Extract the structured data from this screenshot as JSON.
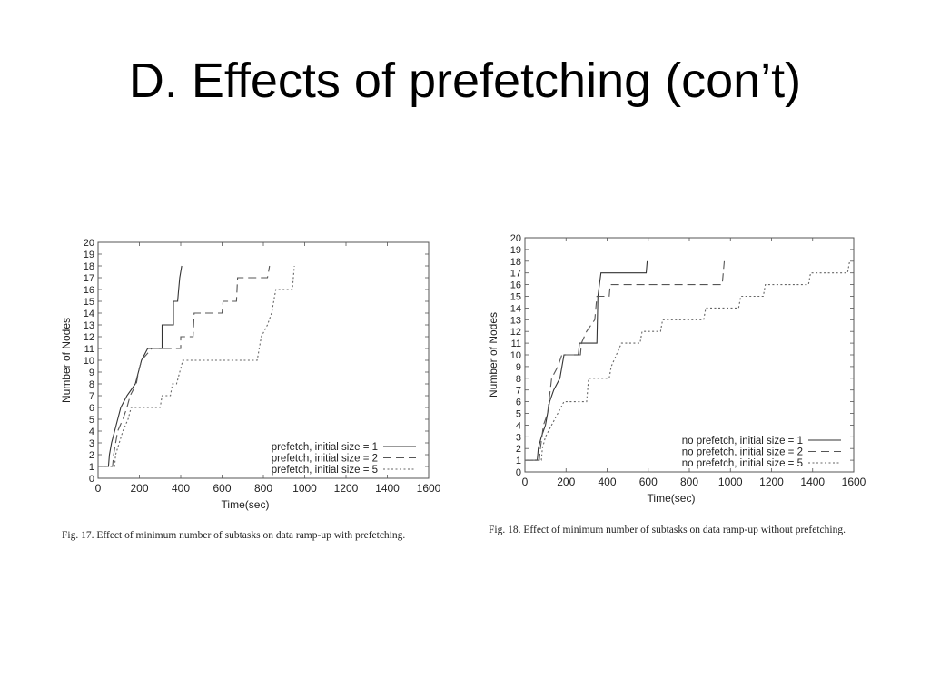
{
  "slide": {
    "title": "D. Effects of prefetching (con’t)"
  },
  "chart_data": [
    {
      "type": "line",
      "step": true,
      "xlabel": "Time(sec)",
      "ylabel": "Number of Nodes",
      "xlim": [
        0,
        1600
      ],
      "ylim": [
        0,
        20
      ],
      "xticks": [
        0,
        200,
        400,
        600,
        800,
        1000,
        1200,
        1400,
        1600
      ],
      "yticks": [
        0,
        1,
        2,
        3,
        4,
        5,
        6,
        7,
        8,
        9,
        10,
        11,
        12,
        13,
        14,
        15,
        16,
        17,
        18,
        19,
        20
      ],
      "legend": "bottom-right",
      "grid": false,
      "caption": "Fig. 17.   Effect of minimum number of subtasks on data ramp-up with prefetching.",
      "series": [
        {
          "name": "prefetch, initial size = 1",
          "style": "solid",
          "points": [
            [
              0,
              1
            ],
            [
              50,
              1
            ],
            [
              55,
              2
            ],
            [
              65,
              3
            ],
            [
              80,
              4
            ],
            [
              95,
              5
            ],
            [
              110,
              6
            ],
            [
              140,
              7
            ],
            [
              180,
              8
            ],
            [
              195,
              9
            ],
            [
              210,
              10
            ],
            [
              240,
              11
            ],
            [
              310,
              11
            ],
            [
              310,
              13
            ],
            [
              365,
              13
            ],
            [
              365,
              15
            ],
            [
              385,
              15
            ],
            [
              390,
              16
            ],
            [
              395,
              17
            ],
            [
              405,
              18
            ]
          ]
        },
        {
          "name": "prefetch, initial size = 2",
          "style": "dashed",
          "points": [
            [
              0,
              1
            ],
            [
              70,
              1
            ],
            [
              75,
              2
            ],
            [
              95,
              4
            ],
            [
              120,
              5
            ],
            [
              140,
              6
            ],
            [
              155,
              7
            ],
            [
              185,
              8
            ],
            [
              195,
              9
            ],
            [
              210,
              10
            ],
            [
              260,
              11
            ],
            [
              400,
              11
            ],
            [
              400,
              12
            ],
            [
              460,
              12
            ],
            [
              465,
              14
            ],
            [
              600,
              14
            ],
            [
              605,
              15
            ],
            [
              670,
              15
            ],
            [
              675,
              17
            ],
            [
              820,
              17
            ],
            [
              830,
              18
            ]
          ]
        },
        {
          "name": "prefetch, initial size = 5",
          "style": "dotted",
          "points": [
            [
              0,
              1
            ],
            [
              80,
              1
            ],
            [
              85,
              2
            ],
            [
              120,
              4
            ],
            [
              145,
              5
            ],
            [
              160,
              6
            ],
            [
              300,
              6
            ],
            [
              310,
              7
            ],
            [
              350,
              7
            ],
            [
              360,
              8
            ],
            [
              380,
              8
            ],
            [
              395,
              9
            ],
            [
              410,
              10
            ],
            [
              770,
              10
            ],
            [
              790,
              12
            ],
            [
              820,
              13
            ],
            [
              840,
              14
            ],
            [
              860,
              16
            ],
            [
              940,
              16
            ],
            [
              945,
              17
            ],
            [
              950,
              18
            ]
          ]
        }
      ]
    },
    {
      "type": "line",
      "step": true,
      "xlabel": "Time(sec)",
      "ylabel": "Number of Nodes",
      "xlim": [
        0,
        1600
      ],
      "ylim": [
        0,
        20
      ],
      "xticks": [
        0,
        200,
        400,
        600,
        800,
        1000,
        1200,
        1400,
        1600
      ],
      "yticks": [
        0,
        1,
        2,
        3,
        4,
        5,
        6,
        7,
        8,
        9,
        10,
        11,
        12,
        13,
        14,
        15,
        16,
        17,
        18,
        19,
        20
      ],
      "legend": "bottom-right",
      "grid": false,
      "caption": "Fig. 18.   Effect of minimum number of subtasks on data ramp-up without prefetching.",
      "series": [
        {
          "name": "no prefetch, initial size = 1",
          "style": "solid",
          "points": [
            [
              0,
              1
            ],
            [
              60,
              1
            ],
            [
              65,
              2
            ],
            [
              80,
              3
            ],
            [
              100,
              4
            ],
            [
              120,
              6
            ],
            [
              140,
              7
            ],
            [
              170,
              8
            ],
            [
              190,
              10
            ],
            [
              260,
              10
            ],
            [
              265,
              11
            ],
            [
              350,
              11
            ],
            [
              355,
              15
            ],
            [
              370,
              17
            ],
            [
              590,
              17
            ],
            [
              595,
              18
            ]
          ]
        },
        {
          "name": "no prefetch, initial size = 2",
          "style": "dashed",
          "points": [
            [
              0,
              1
            ],
            [
              70,
              1
            ],
            [
              75,
              2
            ],
            [
              90,
              4
            ],
            [
              110,
              5
            ],
            [
              130,
              8
            ],
            [
              160,
              9
            ],
            [
              180,
              10
            ],
            [
              270,
              10
            ],
            [
              275,
              11
            ],
            [
              300,
              12
            ],
            [
              340,
              13
            ],
            [
              350,
              15
            ],
            [
              410,
              15
            ],
            [
              415,
              16
            ],
            [
              960,
              16
            ],
            [
              970,
              18
            ]
          ]
        },
        {
          "name": "no prefetch, initial size = 5",
          "style": "dotted",
          "points": [
            [
              0,
              1
            ],
            [
              80,
              1
            ],
            [
              85,
              2
            ],
            [
              100,
              3
            ],
            [
              130,
              4
            ],
            [
              160,
              5
            ],
            [
              190,
              6
            ],
            [
              300,
              6
            ],
            [
              310,
              8
            ],
            [
              410,
              8
            ],
            [
              420,
              9
            ],
            [
              470,
              11
            ],
            [
              560,
              11
            ],
            [
              570,
              12
            ],
            [
              660,
              12
            ],
            [
              670,
              13
            ],
            [
              870,
              13
            ],
            [
              880,
              14
            ],
            [
              1040,
              14
            ],
            [
              1050,
              15
            ],
            [
              1160,
              15
            ],
            [
              1170,
              16
            ],
            [
              1380,
              16
            ],
            [
              1390,
              17
            ],
            [
              1570,
              17
            ],
            [
              1580,
              18
            ]
          ]
        }
      ]
    }
  ]
}
